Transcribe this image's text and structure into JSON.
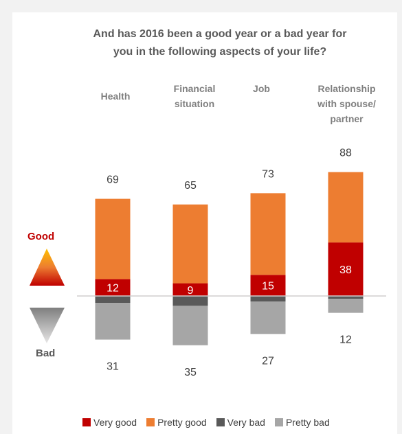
{
  "title_lines": [
    "And has 2016 been a good year or a bad year for",
    "you in the following aspects of your life?"
  ],
  "indicators": {
    "good_label": "Good",
    "bad_label": "Bad",
    "good_color": "#c00000",
    "bad_color": "#595959"
  },
  "colors": {
    "very_good": "#c00000",
    "pretty_good": "#ed7d31",
    "very_bad": "#595959",
    "pretty_bad": "#a6a6a6"
  },
  "chart_data": {
    "type": "bar",
    "stacked": "diverging",
    "title": "And has 2016 been a good year or a bad year for you in the following aspects of your life?",
    "categories": [
      "Health",
      "Financial\nsituation",
      "Job",
      "Relationship\nwith spouse/\npartner"
    ],
    "series": [
      {
        "name": "Very good",
        "values": [
          12,
          9,
          15,
          38
        ]
      },
      {
        "name": "Pretty good",
        "values": [
          57,
          56,
          58,
          50
        ]
      },
      {
        "name": "Very bad",
        "values": [
          -5,
          -7,
          -4,
          -2
        ]
      },
      {
        "name": "Pretty bad",
        "values": [
          -26,
          -28,
          -23,
          -10
        ]
      }
    ],
    "data_labels_very_good": [
      12,
      9,
      15,
      38
    ],
    "totals_good": [
      69,
      65,
      73,
      88
    ],
    "totals_bad": [
      31,
      35,
      27,
      12
    ],
    "legend_position": "bottom",
    "grid": false
  }
}
